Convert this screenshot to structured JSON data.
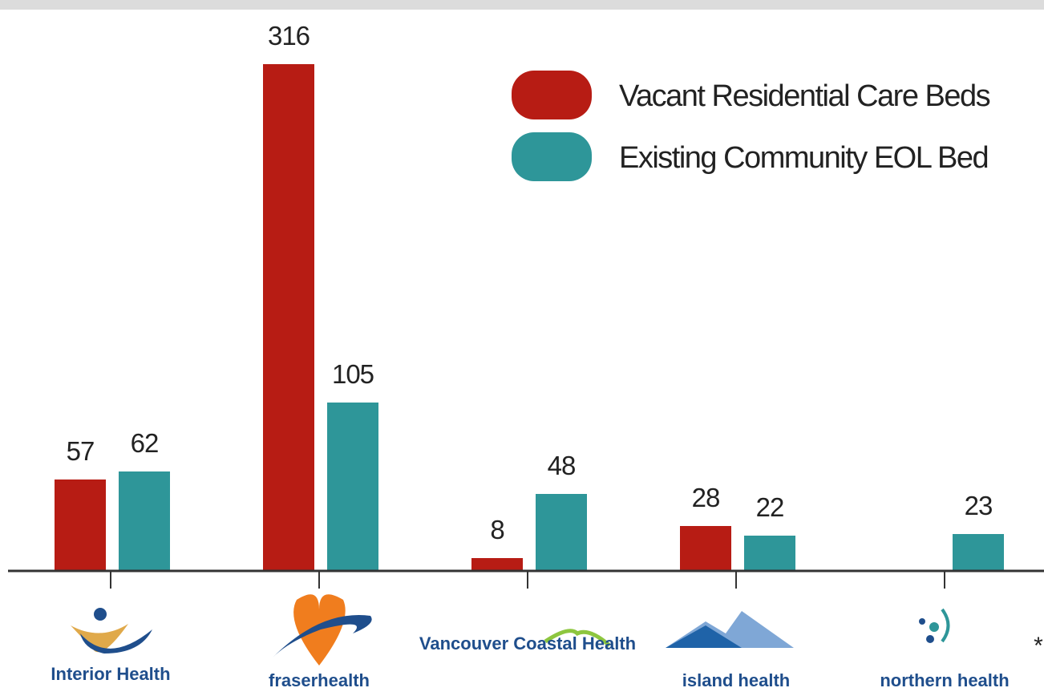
{
  "chart_data": {
    "type": "bar",
    "categories": [
      "Interior Health",
      "fraserhealth",
      "Vancouver Coastal Health",
      "island health",
      "northern health"
    ],
    "series": [
      {
        "name": "Vacant Residential Care Beds",
        "color": "#b71c14",
        "values": [
          57,
          316,
          8,
          28,
          null
        ]
      },
      {
        "name": "Existing Community EOL Bed",
        "color": "#2e9699",
        "values": [
          62,
          105,
          48,
          22,
          23
        ]
      }
    ],
    "ylim": [
      0,
      320
    ],
    "annotation": "*"
  }
}
